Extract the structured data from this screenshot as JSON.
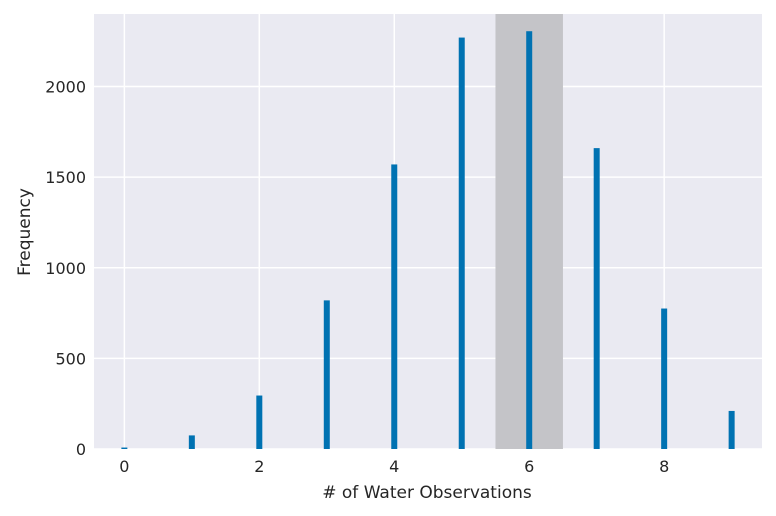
{
  "chart_data": {
    "type": "bar",
    "title": "",
    "xlabel": "# of Water Observations",
    "ylabel": "Frequency",
    "x": [
      0,
      1,
      2,
      3,
      4,
      5,
      6,
      7,
      8,
      9
    ],
    "values": [
      8,
      75,
      295,
      820,
      1570,
      2270,
      2305,
      1660,
      775,
      210
    ],
    "xlim": [
      -0.45,
      9.45
    ],
    "ylim": [
      0,
      2400
    ],
    "xticks": [
      0,
      2,
      4,
      6,
      8
    ],
    "yticks": [
      0,
      500,
      1000,
      1500,
      2000
    ],
    "highlight_span": [
      5.5,
      6.5
    ],
    "grid": true,
    "colors": {
      "bar": "#0072B2",
      "plot_background": "#EAEAF2",
      "grid": "#FFFFFF",
      "highlight": "#C4C4C8",
      "text": "#262626"
    }
  }
}
